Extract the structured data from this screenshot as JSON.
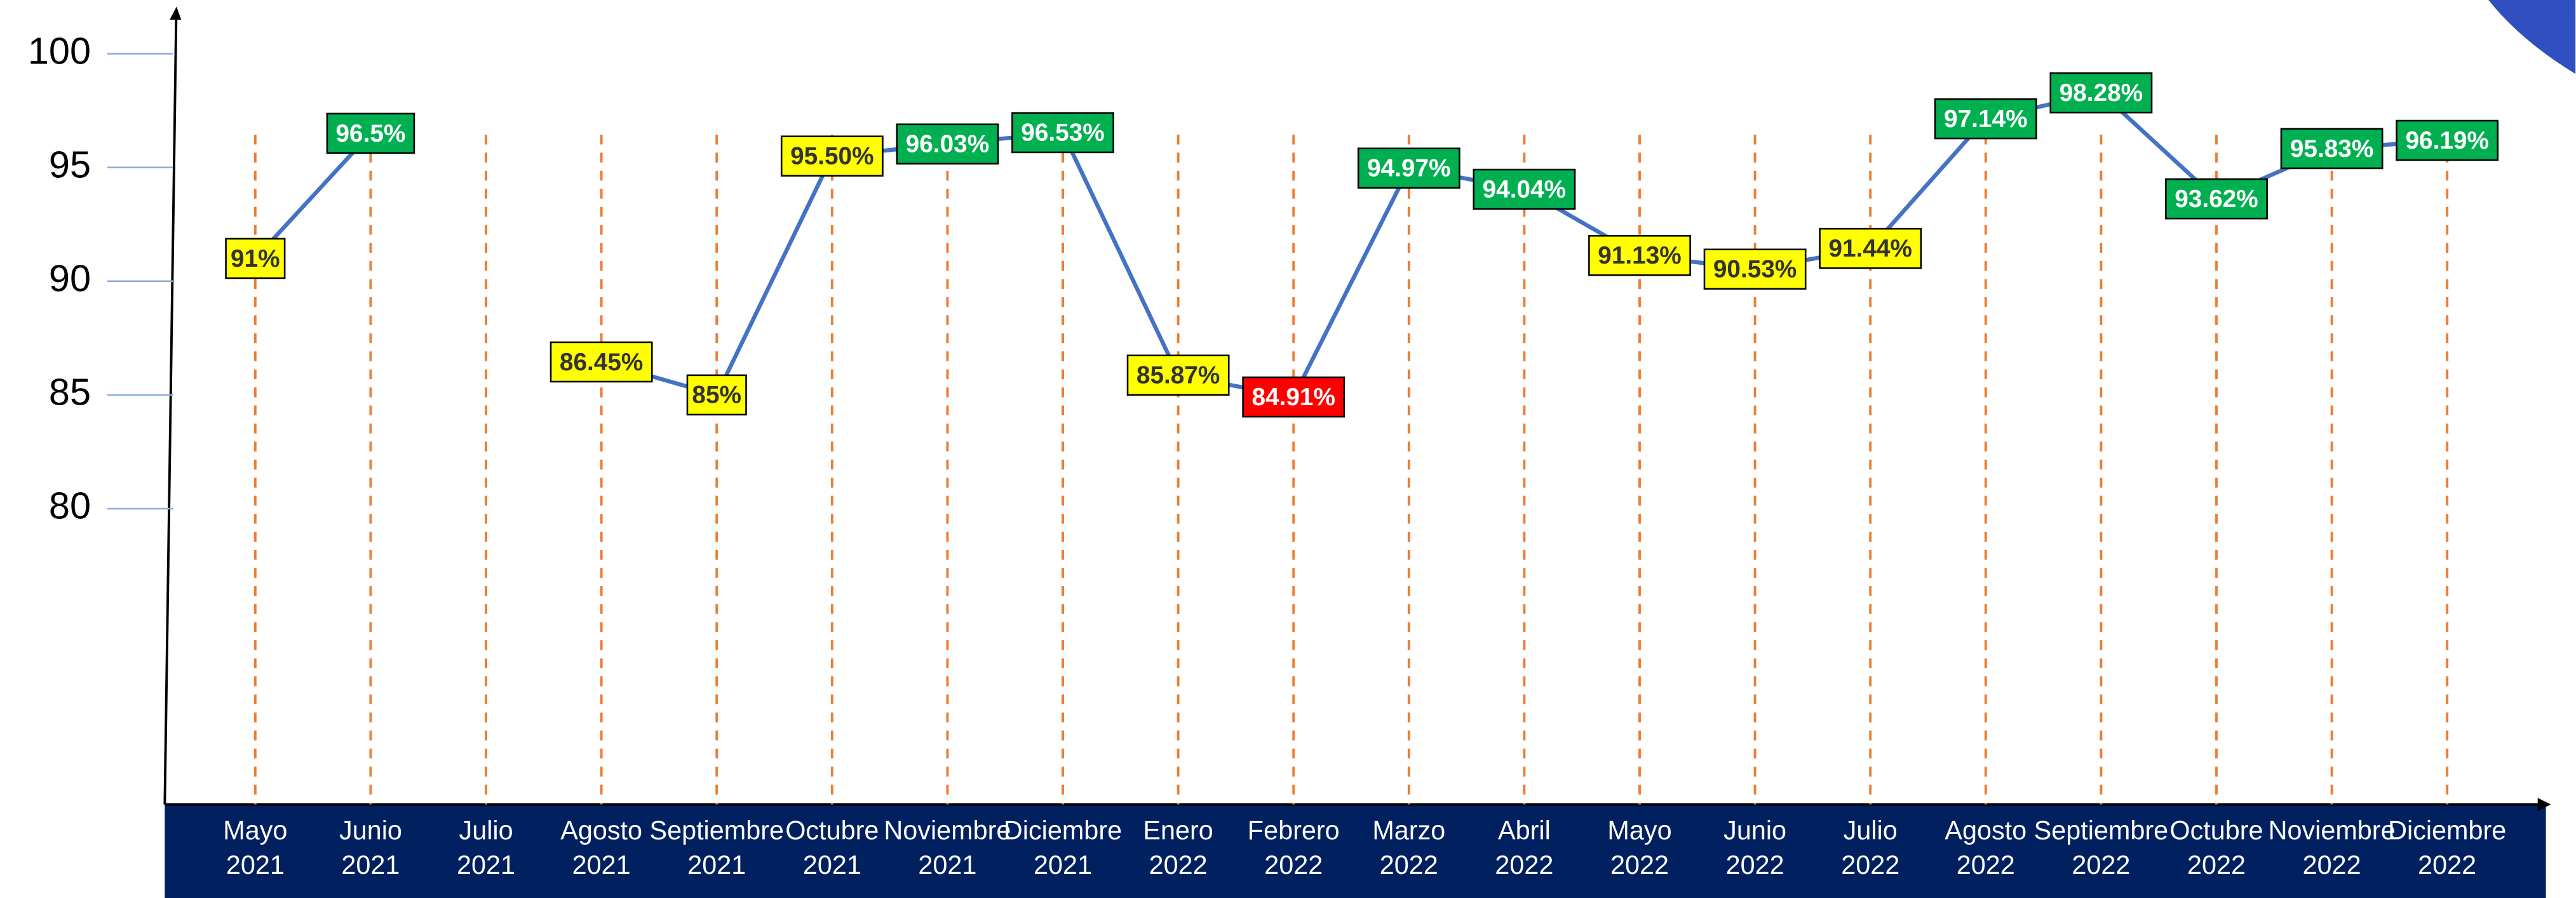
{
  "chart_data": {
    "type": "line",
    "categories": [
      [
        "Mayo",
        "2021"
      ],
      [
        "Junio",
        "2021"
      ],
      [
        "Julio",
        "2021"
      ],
      [
        "Agosto",
        "2021"
      ],
      [
        "Septiembre",
        "2021"
      ],
      [
        "Octubre",
        "2021"
      ],
      [
        "Noviembre",
        "2021"
      ],
      [
        "Diciembre",
        "2021"
      ],
      [
        "Enero",
        "2022"
      ],
      [
        "Febrero",
        "2022"
      ],
      [
        "Marzo",
        "2022"
      ],
      [
        "Abril",
        "2022"
      ],
      [
        "Mayo",
        "2022"
      ],
      [
        "Junio",
        "2022"
      ],
      [
        "Julio",
        "2022"
      ],
      [
        "Agosto",
        "2022"
      ],
      [
        "Septiembre",
        "2022"
      ],
      [
        "Octubre",
        "2022"
      ],
      [
        "Noviembre",
        "2022"
      ],
      [
        "Diciembre",
        "2022"
      ]
    ],
    "series": [
      {
        "color": "#4472c4",
        "values": [
          91,
          96.5,
          null,
          86.45,
          85,
          95.5,
          96.03,
          96.53,
          85.87,
          84.91,
          94.97,
          94.04,
          91.13,
          90.53,
          91.44,
          97.14,
          98.28,
          93.62,
          95.83,
          96.19
        ],
        "value_labels": [
          "91%",
          "96.5%",
          null,
          "86.45%",
          "85%",
          "95.50%",
          "96.03%",
          "96.53%",
          "85.87%",
          "84.91%",
          "94.97%",
          "94.04%",
          "91.13%",
          "90.53%",
          "91.44%",
          "97.14%",
          "98.28%",
          "93.62%",
          "95.83%",
          "96.19%"
        ],
        "label_colors": [
          "#ffff00",
          "#00b050",
          null,
          "#ffff00",
          "#ffff00",
          "#ffff00",
          "#00b050",
          "#00b050",
          "#ffff00",
          "#ff0000",
          "#00b050",
          "#00b050",
          "#ffff00",
          "#ffff00",
          "#ffff00",
          "#00b050",
          "#00b050",
          "#00b050",
          "#00b050",
          "#00b050"
        ]
      }
    ],
    "ylim": [
      67,
      102
    ],
    "yticks": [
      80,
      85,
      90,
      95,
      100
    ],
    "grid": true,
    "grid_color": "#ed7d31",
    "axis_band_color": "#002060"
  }
}
